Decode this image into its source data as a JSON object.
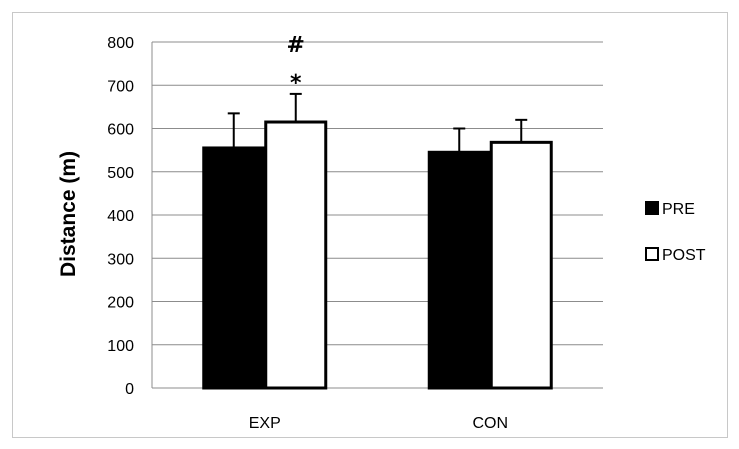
{
  "chart_data": {
    "type": "bar",
    "title": "",
    "xlabel": "",
    "ylabel": "Distance (m)",
    "ylim": [
      0,
      800
    ],
    "yticks": [
      0,
      100,
      200,
      300,
      400,
      500,
      600,
      700,
      800
    ],
    "ytick_labels": [
      "0",
      "100",
      "200",
      "300",
      "400",
      "500",
      "600",
      "700",
      "800"
    ],
    "grid": true,
    "categories": [
      "EXP",
      "CON"
    ],
    "series": [
      {
        "name": "PRE",
        "values": [
          555,
          545
        ],
        "errors": [
          80,
          55
        ],
        "color": "#000000"
      },
      {
        "name": "POST",
        "values": [
          615,
          568
        ],
        "errors": [
          65,
          52
        ],
        "color": "#ffffff"
      }
    ],
    "annotations": [
      {
        "text": "#",
        "category": "EXP",
        "series": "POST"
      },
      {
        "text": "*",
        "category": "EXP",
        "series": "POST"
      }
    ],
    "legend_position": "right"
  }
}
